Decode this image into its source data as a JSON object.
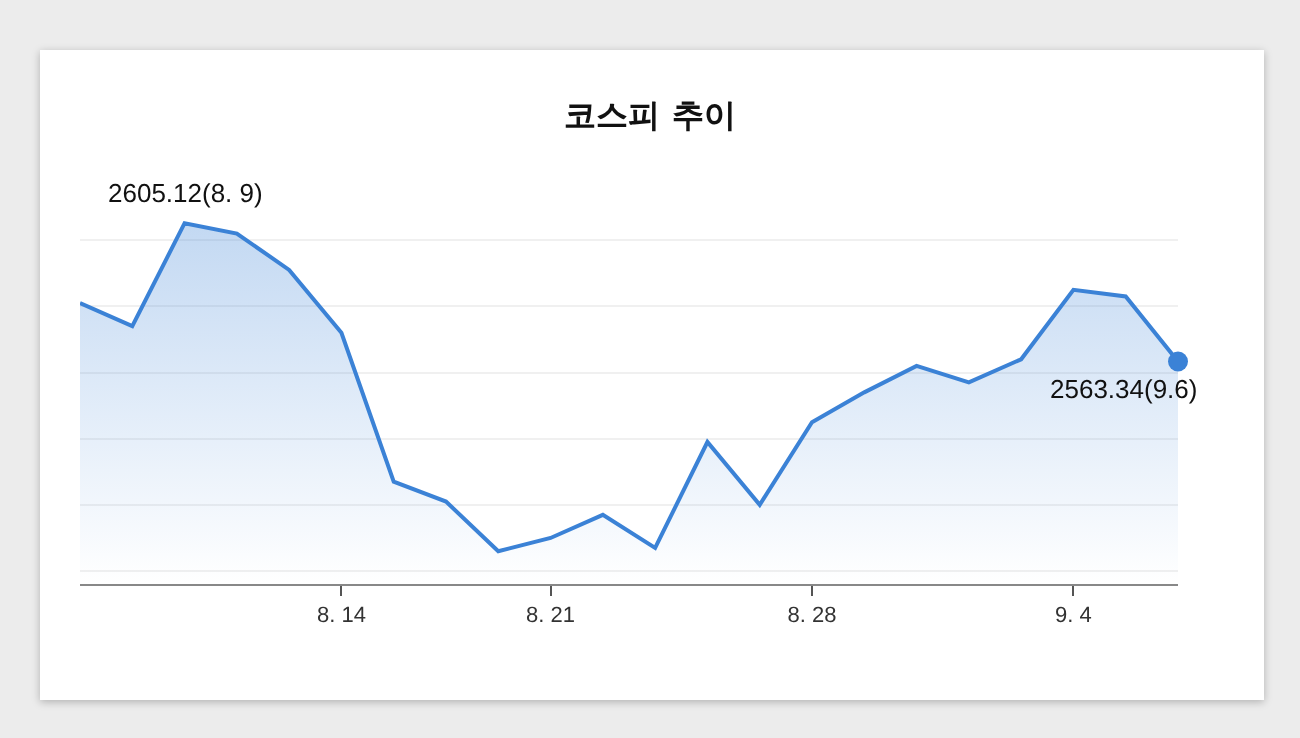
{
  "chart_data": {
    "type": "area",
    "title": "코스피 추이",
    "categories": [
      null,
      null,
      null,
      null,
      null,
      "8. 14",
      null,
      null,
      null,
      "8. 21",
      null,
      null,
      null,
      null,
      "8. 28",
      null,
      null,
      null,
      null,
      "9. 4",
      null,
      null
    ],
    "series": [
      {
        "color": "#3b82d6",
        "values": [
          2581,
          2574,
          2605.12,
          2602,
          2591,
          2572,
          2527,
          2521,
          2506,
          2510,
          2517,
          2507,
          2539,
          2520,
          2545,
          2554,
          2562,
          2557,
          2564,
          2585,
          2583,
          2563.34
        ],
        "value_labels": [
          null,
          null,
          "2605.12(8. 9)",
          null,
          null,
          null,
          null,
          null,
          null,
          null,
          null,
          null,
          null,
          null,
          null,
          null,
          null,
          null,
          null,
          null,
          null,
          "2563.34(9.6)"
        ]
      },
      {
        "type": "scatter",
        "marker": "circle",
        "color": "#3b82d6",
        "values": [
          null,
          null,
          null,
          null,
          null,
          null,
          null,
          null,
          null,
          null,
          null,
          null,
          null,
          null,
          null,
          null,
          null,
          null,
          null,
          null,
          null,
          2563.34
        ]
      }
    ],
    "grid": "y",
    "tick_labels": "x"
  }
}
